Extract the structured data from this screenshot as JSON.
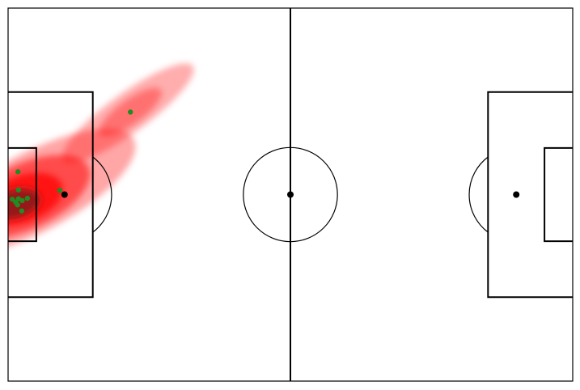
{
  "chart_data": {
    "type": "scatter",
    "subtype": "pitch-heatmap",
    "title": "",
    "xlabel": "",
    "ylabel": "",
    "xlim": [
      0,
      120
    ],
    "ylim": [
      0,
      80
    ],
    "y_inverted": true,
    "grid": false,
    "legend": "none",
    "points": [
      {
        "x": 26.0,
        "y": 22.3
      },
      {
        "x": 2.1,
        "y": 35.1
      },
      {
        "x": 2.2,
        "y": 39.0
      },
      {
        "x": 11.0,
        "y": 39.1
      },
      {
        "x": 0.9,
        "y": 41.0
      },
      {
        "x": 1.6,
        "y": 41.6
      },
      {
        "x": 2.2,
        "y": 40.9
      },
      {
        "x": 3.0,
        "y": 41.3
      },
      {
        "x": 4.1,
        "y": 40.8
      },
      {
        "x": 2.0,
        "y": 42.2
      },
      {
        "x": 2.9,
        "y": 43.5
      }
    ],
    "density_blobs": [
      {
        "cx": 5.5,
        "cy": 39.5,
        "rx": 24.0,
        "ry": 8.5,
        "angle": -28,
        "opacity": 0.35
      },
      {
        "cx": 3.5,
        "cy": 40.5,
        "rx": 15.0,
        "ry": 7.0,
        "angle": -25,
        "opacity": 0.55
      },
      {
        "cx": 3.0,
        "cy": 41.0,
        "rx": 9.0,
        "ry": 5.0,
        "angle": -20,
        "opacity": 0.75
      },
      {
        "cx": 1.5,
        "cy": 42.0,
        "rx": 5.5,
        "ry": 3.2,
        "angle": -15,
        "opacity": 0.9
      },
      {
        "cx": 25.5,
        "cy": 22.5,
        "rx": 17.0,
        "ry": 4.2,
        "angle": -36,
        "opacity": 0.32
      },
      {
        "cx": 26.0,
        "cy": 22.3,
        "rx": 8.0,
        "ry": 2.6,
        "angle": -36,
        "opacity": 0.35
      }
    ],
    "colors": {
      "heat": "#ff0000",
      "heat_core": "#8b1a1a",
      "points": "#228b22",
      "lines": "#000000",
      "background": "#ffffff"
    }
  }
}
